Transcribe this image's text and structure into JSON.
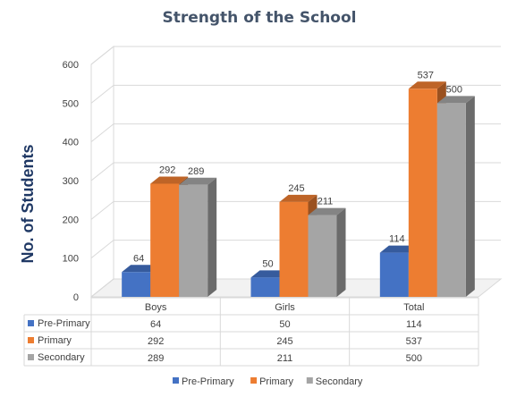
{
  "chart_data": {
    "type": "bar",
    "title": "Strength of the School",
    "xlabel": "",
    "ylabel": "No. of Students",
    "ylim": [
      0,
      600
    ],
    "yticks": [
      0,
      100,
      200,
      300,
      400,
      500,
      600
    ],
    "categories": [
      "Boys",
      "Girls",
      "Total"
    ],
    "series": [
      {
        "name": "Pre-Primary",
        "color": "#4472c4",
        "values": [
          64,
          50,
          114
        ]
      },
      {
        "name": "Primary",
        "color": "#ed7d31",
        "values": [
          292,
          245,
          537
        ]
      },
      {
        "name": "Secondary",
        "color": "#a5a5a5",
        "values": [
          289,
          211,
          500
        ]
      }
    ],
    "grid": true,
    "data_table": true,
    "legend_position": "bottom",
    "style": "3d-clustered-column"
  }
}
